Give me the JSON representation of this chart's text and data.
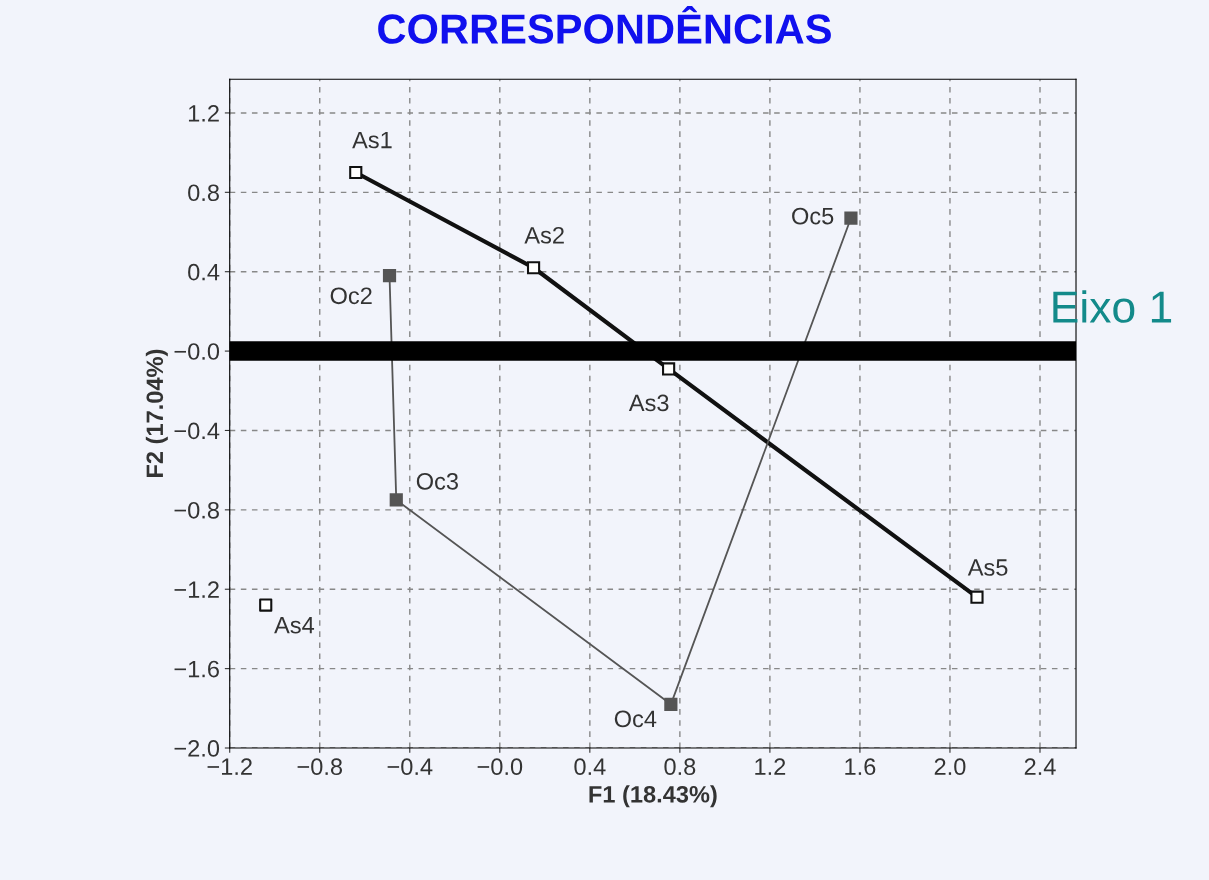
{
  "chart_data": {
    "type": "line",
    "title": "CORRESPONDÊNCIAS",
    "xlabel": "F1 (18.43%)",
    "ylabel": "F2 (17.04%)",
    "xlim": [
      -1.2,
      2.56
    ],
    "ylim": [
      -2.0,
      1.37
    ],
    "xticks": [
      {
        "value": -1.2,
        "label": "−1.2"
      },
      {
        "value": -0.8,
        "label": "−0.8"
      },
      {
        "value": -0.4,
        "label": "−0.4"
      },
      {
        "value": 0,
        "label": "−0.0"
      },
      0.4,
      0.8,
      1.2,
      1.6,
      {
        "value": 2.0,
        "label": "2.0"
      },
      2.4
    ],
    "yticks": [
      {
        "value": -2.0,
        "label": "−2.0"
      },
      {
        "value": -1.6,
        "label": "−1.6"
      },
      {
        "value": -1.2,
        "label": "−1.2"
      },
      {
        "value": -0.8,
        "label": "−0.8"
      },
      {
        "value": -0.4,
        "label": "−0.4"
      },
      {
        "value": 0,
        "label": "−0.0"
      },
      0.4,
      0.8,
      1.2
    ],
    "grid": true,
    "marker": "square",
    "series": [
      {
        "x": [
          -0.64,
          0.15,
          0.75,
          2.12
        ],
        "values": [
          0.9,
          0.42,
          -0.09,
          -1.24
        ],
        "color": "#111111"
      },
      {
        "type": "scatter",
        "x": [
          -1.04
        ],
        "values": [
          -1.28
        ],
        "color": "#111111"
      },
      {
        "x": [
          -0.49,
          -0.46,
          0.76,
          1.56
        ],
        "values": [
          0.38,
          -0.75,
          -1.78,
          0.67
        ],
        "color": "#555555"
      }
    ],
    "ref_lines": [
      {
        "axis": "y",
        "value": 0,
        "label": "Eixo 1",
        "color": "#000000"
      }
    ],
    "annotations": [
      {
        "text": "As1",
        "x": -0.64,
        "y": 0.9
      },
      {
        "text": "As2",
        "x": 0.15,
        "y": 0.42
      },
      {
        "text": "As3",
        "x": 0.75,
        "y": -0.09
      },
      {
        "text": "As4",
        "x": -1.04,
        "y": -1.28
      },
      {
        "text": "As5",
        "x": 2.12,
        "y": -1.24
      },
      {
        "text": "Oc2",
        "x": -0.49,
        "y": 0.38
      },
      {
        "text": "Oc3",
        "x": -0.46,
        "y": -0.75
      },
      {
        "text": "Oc4",
        "x": 0.76,
        "y": -1.78
      },
      {
        "text": "Oc5",
        "x": 1.56,
        "y": 0.67
      }
    ]
  }
}
